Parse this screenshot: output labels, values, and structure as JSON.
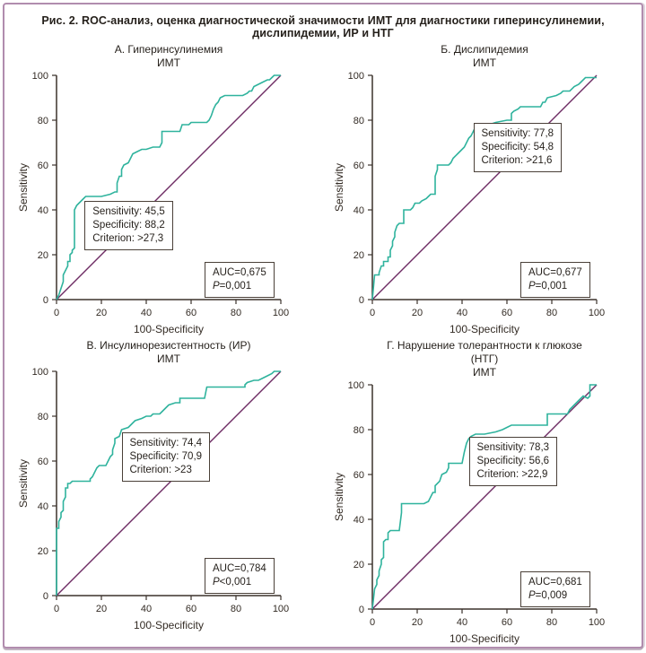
{
  "figure": {
    "title": "Рис. 2. ROC-анализ, оценка диагностической значимости ИМТ для диагностики гиперинсулинемии, дислипидемии, ИР и НТГ"
  },
  "colors": {
    "curve": "#2fb39d",
    "diagonal": "#6e2c64",
    "axis": "#3b322b",
    "frame": "#b18cae"
  },
  "axis": {
    "xlabel": "100-Specificity",
    "ylabel": "Sensitivity",
    "ticks": [
      0,
      20,
      40,
      60,
      80,
      100
    ],
    "xlim": [
      0,
      100
    ],
    "ylim": [
      0,
      100
    ]
  },
  "chart_data": [
    {
      "type": "line",
      "title": "А. Гиперинсулинемия",
      "subtitle": "ИМТ",
      "annotation": {
        "lines": [
          "Sensitivity: 45,5",
          "Specificity: 88,2",
          "Criterion: >27,3"
        ],
        "pos": [
          12.5,
          44
        ]
      },
      "auc": {
        "line1": "AUC=0,675",
        "p_italic": "P",
        "p_rest": "=0,001",
        "pos": [
          66,
          17
        ]
      },
      "reference": [
        [
          0,
          0
        ],
        [
          100,
          100
        ]
      ],
      "roc": [
        [
          0,
          0
        ],
        [
          1,
          2
        ],
        [
          2,
          5
        ],
        [
          3,
          8
        ],
        [
          3,
          11
        ],
        [
          4,
          13
        ],
        [
          5,
          15
        ],
        [
          5,
          17
        ],
        [
          6,
          17
        ],
        [
          6,
          20
        ],
        [
          7,
          21
        ],
        [
          7,
          22
        ],
        [
          8,
          23
        ],
        [
          8,
          40
        ],
        [
          9,
          42
        ],
        [
          10,
          43
        ],
        [
          12,
          45
        ],
        [
          13,
          46
        ],
        [
          20,
          46
        ],
        [
          24,
          47
        ],
        [
          26,
          48
        ],
        [
          27,
          48
        ],
        [
          27,
          52
        ],
        [
          28,
          55
        ],
        [
          29,
          55
        ],
        [
          29,
          58
        ],
        [
          30,
          60
        ],
        [
          32,
          61
        ],
        [
          33,
          63
        ],
        [
          34,
          65
        ],
        [
          36,
          66
        ],
        [
          38,
          67
        ],
        [
          40,
          67
        ],
        [
          43,
          68
        ],
        [
          46,
          68
        ],
        [
          47,
          70
        ],
        [
          47,
          75
        ],
        [
          50,
          75
        ],
        [
          55,
          75
        ],
        [
          56,
          78
        ],
        [
          59,
          78
        ],
        [
          60,
          79
        ],
        [
          67,
          79
        ],
        [
          68,
          80
        ],
        [
          69,
          82
        ],
        [
          70,
          85
        ],
        [
          71,
          87
        ],
        [
          72,
          88
        ],
        [
          73,
          90
        ],
        [
          75,
          91
        ],
        [
          83,
          91
        ],
        [
          85,
          92
        ],
        [
          86,
          93
        ],
        [
          87,
          93
        ],
        [
          88,
          95
        ],
        [
          90,
          96
        ],
        [
          92,
          97
        ],
        [
          94,
          98
        ],
        [
          95,
          98
        ],
        [
          96,
          99
        ],
        [
          97,
          100
        ],
        [
          100,
          100
        ]
      ]
    },
    {
      "type": "line",
      "title": "Б. Дислипидемия",
      "subtitle": "ИМТ",
      "annotation": {
        "lines": [
          "Sensitivity: 77,8",
          "Specificity: 54,8",
          "Criterion: >21,6"
        ],
        "pos": [
          45,
          79
        ]
      },
      "auc": {
        "line1": "AUC=0,677",
        "p_italic": "P",
        "p_rest": "=0,001",
        "pos": [
          66,
          17
        ]
      },
      "reference": [
        [
          0,
          0
        ],
        [
          100,
          100
        ]
      ],
      "roc": [
        [
          0,
          0
        ],
        [
          1,
          11
        ],
        [
          3,
          11
        ],
        [
          3,
          12
        ],
        [
          4,
          15
        ],
        [
          5,
          15
        ],
        [
          5,
          17
        ],
        [
          7,
          17
        ],
        [
          7,
          19
        ],
        [
          8,
          19
        ],
        [
          8,
          22
        ],
        [
          9,
          24
        ],
        [
          9,
          26
        ],
        [
          10,
          28
        ],
        [
          10,
          30
        ],
        [
          11,
          33
        ],
        [
          12,
          34
        ],
        [
          14,
          34
        ],
        [
          14,
          40
        ],
        [
          17,
          40
        ],
        [
          18,
          41
        ],
        [
          19,
          43
        ],
        [
          21,
          43
        ],
        [
          22,
          44
        ],
        [
          24,
          45
        ],
        [
          25,
          46
        ],
        [
          26,
          47
        ],
        [
          28,
          47
        ],
        [
          28,
          55
        ],
        [
          29,
          58
        ],
        [
          29,
          60
        ],
        [
          34,
          60
        ],
        [
          35,
          61
        ],
        [
          36,
          63
        ],
        [
          38,
          65
        ],
        [
          40,
          67
        ],
        [
          41,
          68
        ],
        [
          42,
          70
        ],
        [
          43,
          72
        ],
        [
          44,
          73
        ],
        [
          45,
          75
        ],
        [
          46,
          77
        ],
        [
          48,
          78
        ],
        [
          52,
          78
        ],
        [
          55,
          79
        ],
        [
          60,
          80
        ],
        [
          62,
          80
        ],
        [
          62,
          83
        ],
        [
          63,
          84
        ],
        [
          65,
          85
        ],
        [
          66,
          86
        ],
        [
          75,
          86
        ],
        [
          76,
          88
        ],
        [
          77,
          88
        ],
        [
          78,
          90
        ],
        [
          82,
          91
        ],
        [
          84,
          92
        ],
        [
          85,
          93
        ],
        [
          88,
          93
        ],
        [
          90,
          95
        ],
        [
          92,
          96
        ],
        [
          93,
          97
        ],
        [
          95,
          99
        ],
        [
          100,
          99
        ]
      ]
    },
    {
      "type": "line",
      "title": "В. Инсулинорезистентность (ИР)",
      "subtitle": "ИМТ",
      "annotation": {
        "lines": [
          "Sensitivity: 74,4",
          "Specificity: 70,9",
          "Criterion: >23"
        ],
        "pos": [
          29,
          73
        ]
      },
      "auc": {
        "line1": "AUC=0,784",
        "p_italic": "P",
        "p_rest": "<0,001",
        "pos": [
          66,
          17
        ]
      },
      "reference": [
        [
          0,
          0
        ],
        [
          100,
          100
        ]
      ],
      "roc": [
        [
          0,
          0
        ],
        [
          0,
          30
        ],
        [
          1,
          30
        ],
        [
          1,
          33
        ],
        [
          2,
          35
        ],
        [
          2,
          37
        ],
        [
          3,
          38
        ],
        [
          3,
          42
        ],
        [
          4,
          44
        ],
        [
          4,
          48
        ],
        [
          5,
          48
        ],
        [
          5,
          50
        ],
        [
          6,
          50
        ],
        [
          7,
          51
        ],
        [
          10,
          51
        ],
        [
          15,
          51
        ],
        [
          15,
          52
        ],
        [
          16,
          53
        ],
        [
          17,
          55
        ],
        [
          18,
          57
        ],
        [
          19,
          58
        ],
        [
          22,
          58
        ],
        [
          23,
          60
        ],
        [
          24,
          62
        ],
        [
          25,
          63
        ],
        [
          25,
          65
        ],
        [
          26,
          68
        ],
        [
          26,
          70
        ],
        [
          28,
          71
        ],
        [
          29,
          74
        ],
        [
          32,
          75
        ],
        [
          33,
          76
        ],
        [
          34,
          77
        ],
        [
          35,
          78
        ],
        [
          38,
          79
        ],
        [
          40,
          80
        ],
        [
          42,
          80
        ],
        [
          43,
          81
        ],
        [
          46,
          81
        ],
        [
          47,
          82
        ],
        [
          48,
          83
        ],
        [
          50,
          85
        ],
        [
          53,
          86
        ],
        [
          55,
          86
        ],
        [
          55,
          88
        ],
        [
          62,
          88
        ],
        [
          66,
          88
        ],
        [
          67,
          93
        ],
        [
          80,
          93
        ],
        [
          84,
          93
        ],
        [
          84,
          94
        ],
        [
          85,
          95
        ],
        [
          88,
          96
        ],
        [
          90,
          96
        ],
        [
          92,
          97
        ],
        [
          94,
          98
        ],
        [
          96,
          99
        ],
        [
          97,
          100
        ],
        [
          100,
          100
        ]
      ]
    },
    {
      "type": "line",
      "title": "Г. Нарушение толерантности к глюкозе (НТГ)",
      "subtitle": "ИМТ",
      "annotation": {
        "lines": [
          "Sensitivity: 78,3",
          "Specificity: 56,6",
          "Criterion: >22,9"
        ],
        "pos": [
          43,
          77
        ]
      },
      "auc": {
        "line1": "AUC=0,681",
        "p_italic": "P",
        "p_rest": "=0,009",
        "pos": [
          66,
          17
        ]
      },
      "reference": [
        [
          0,
          0
        ],
        [
          100,
          100
        ]
      ],
      "roc": [
        [
          0,
          0
        ],
        [
          1,
          9
        ],
        [
          2,
          11
        ],
        [
          2,
          13
        ],
        [
          3,
          15
        ],
        [
          3,
          17
        ],
        [
          4,
          20
        ],
        [
          4,
          22
        ],
        [
          5,
          23
        ],
        [
          5,
          30
        ],
        [
          6,
          31
        ],
        [
          7,
          31
        ],
        [
          7,
          34
        ],
        [
          8,
          35
        ],
        [
          12,
          35
        ],
        [
          13,
          43
        ],
        [
          13,
          47
        ],
        [
          22,
          47
        ],
        [
          23,
          47
        ],
        [
          25,
          48
        ],
        [
          26,
          50
        ],
        [
          27,
          52
        ],
        [
          28,
          52
        ],
        [
          28,
          55
        ],
        [
          30,
          57
        ],
        [
          31,
          60
        ],
        [
          33,
          61
        ],
        [
          34,
          63
        ],
        [
          34,
          65
        ],
        [
          40,
          65
        ],
        [
          41,
          70
        ],
        [
          42,
          74
        ],
        [
          43,
          76
        ],
        [
          44,
          77
        ],
        [
          46,
          78
        ],
        [
          50,
          78
        ],
        [
          55,
          79
        ],
        [
          58,
          80
        ],
        [
          60,
          81
        ],
        [
          62,
          82
        ],
        [
          78,
          82
        ],
        [
          78,
          87
        ],
        [
          87,
          87
        ],
        [
          88,
          89
        ],
        [
          90,
          91
        ],
        [
          92,
          93
        ],
        [
          94,
          95
        ],
        [
          96,
          94
        ],
        [
          97,
          95
        ],
        [
          97,
          100
        ],
        [
          100,
          100
        ]
      ]
    }
  ]
}
